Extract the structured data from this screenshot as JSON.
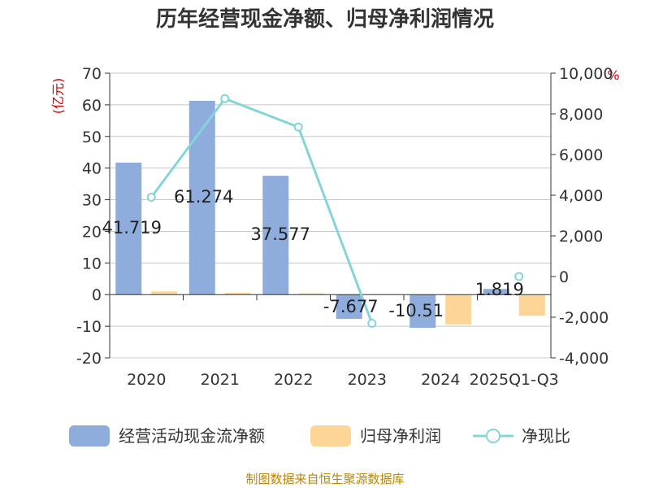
{
  "chart_data": {
    "type": "bar",
    "title": "历年经营现金净额、归母净利润情况",
    "categories": [
      "2020",
      "2021",
      "2022",
      "2023",
      "2024",
      "2025Q1-Q3"
    ],
    "left_unit": "(亿元)",
    "right_unit": "%",
    "ylim_left": [
      -20,
      70
    ],
    "ylim_right": [
      -4000,
      10000
    ],
    "left_ticks": [
      "70",
      "60",
      "50",
      "40",
      "30",
      "20",
      "10",
      "0",
      "-10",
      "-20"
    ],
    "right_ticks": [
      "10,000",
      "8,000",
      "6,000",
      "4,000",
      "2,000",
      "0",
      "-2,000",
      "-4,000"
    ],
    "grid": true,
    "legend_position": "bottom",
    "series": [
      {
        "name": "经营活动现金流净额",
        "type": "bar",
        "axis": "left",
        "color": "#8eaddc",
        "values": [
          41.719,
          61.274,
          37.577,
          -7.677,
          -10.51,
          1.819
        ],
        "labels": [
          "41.719",
          "61.274",
          "37.577",
          "-7.677",
          "-10.51",
          "1.819"
        ]
      },
      {
        "name": "归母净利润",
        "type": "bar",
        "axis": "left",
        "color": "#fdd596",
        "values": [
          1.0,
          0.6,
          0.4,
          0.2,
          -9.4,
          -6.7
        ]
      },
      {
        "name": "净现比",
        "type": "line",
        "axis": "right",
        "color": "#85d4d9",
        "values": [
          3900,
          8750,
          7350,
          -2300,
          null,
          0
        ]
      }
    ],
    "source": "制图数据来自恒生聚源数据库"
  }
}
